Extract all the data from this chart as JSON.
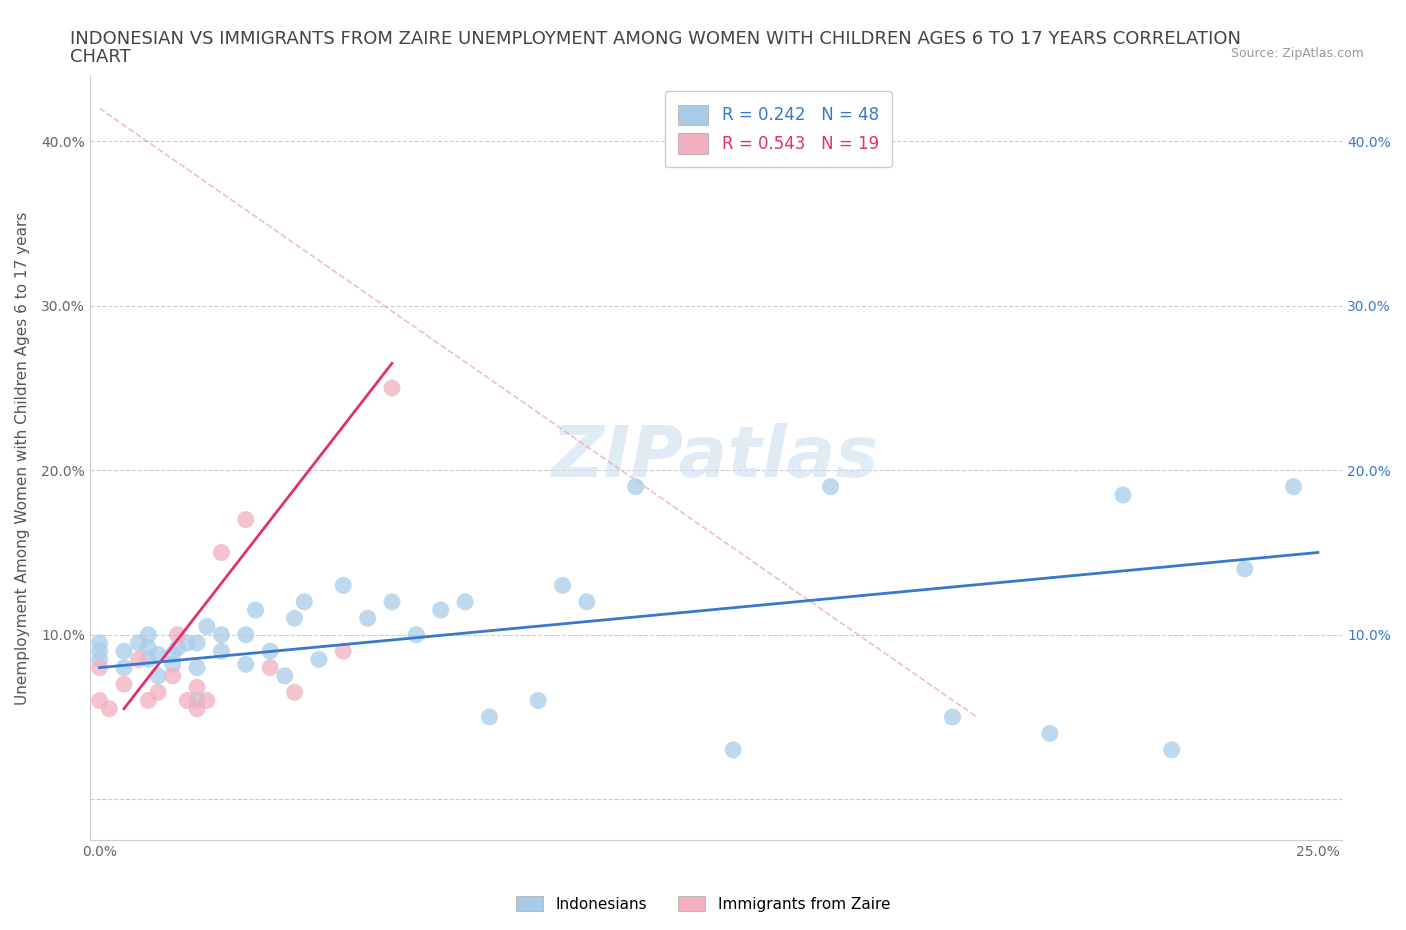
{
  "title_line1": "INDONESIAN VS IMMIGRANTS FROM ZAIRE UNEMPLOYMENT AMONG WOMEN WITH CHILDREN AGES 6 TO 17 YEARS CORRELATION",
  "title_line2": "CHART",
  "source_text": "Source: ZipAtlas.com",
  "ylabel": "Unemployment Among Women with Children Ages 6 to 17 years",
  "watermark": "ZIPatlas",
  "xlim": [
    -0.002,
    0.255
  ],
  "ylim": [
    -0.025,
    0.44
  ],
  "xticks": [
    0.0,
    0.05,
    0.1,
    0.15,
    0.2,
    0.25
  ],
  "xtick_labels": [
    "0.0%",
    "",
    "",
    "",
    "",
    "25.0%"
  ],
  "ytick_positions": [
    0.0,
    0.1,
    0.2,
    0.3,
    0.4
  ],
  "ytick_labels_left": [
    "",
    "10.0%",
    "20.0%",
    "30.0%",
    "40.0%"
  ],
  "right_ytick_positions": [
    0.1,
    0.2,
    0.3,
    0.4
  ],
  "right_ytick_labels": [
    "10.0%",
    "20.0%",
    "30.0%",
    "40.0%"
  ],
  "indonesian_color": "#a8cce8",
  "zaire_color": "#f2afc0",
  "indonesian_line_color": "#3a78c9",
  "zaire_line_color": "#e03070",
  "indonesian_R": 0.242,
  "indonesian_N": 48,
  "zaire_R": 0.543,
  "zaire_N": 19,
  "background_color": "#ffffff",
  "grid_color": "#cccccc",
  "indonesian_scatter_x": [
    0.0,
    0.0,
    0.0,
    0.005,
    0.005,
    0.008,
    0.01,
    0.01,
    0.01,
    0.012,
    0.012,
    0.015,
    0.015,
    0.016,
    0.018,
    0.02,
    0.02,
    0.02,
    0.022,
    0.025,
    0.025,
    0.03,
    0.03,
    0.032,
    0.035,
    0.038,
    0.04,
    0.042,
    0.045,
    0.05,
    0.055,
    0.06,
    0.065,
    0.07,
    0.075,
    0.08,
    0.09,
    0.095,
    0.1,
    0.11,
    0.13,
    0.15,
    0.175,
    0.195,
    0.21,
    0.22,
    0.235,
    0.245
  ],
  "indonesian_scatter_y": [
    0.085,
    0.09,
    0.095,
    0.08,
    0.09,
    0.095,
    0.085,
    0.092,
    0.1,
    0.075,
    0.088,
    0.082,
    0.088,
    0.092,
    0.095,
    0.06,
    0.08,
    0.095,
    0.105,
    0.09,
    0.1,
    0.082,
    0.1,
    0.115,
    0.09,
    0.075,
    0.11,
    0.12,
    0.085,
    0.13,
    0.11,
    0.12,
    0.1,
    0.115,
    0.12,
    0.05,
    0.06,
    0.13,
    0.12,
    0.19,
    0.03,
    0.19,
    0.05,
    0.04,
    0.185,
    0.03,
    0.14,
    0.19
  ],
  "zaire_scatter_x": [
    0.0,
    0.0,
    0.002,
    0.005,
    0.008,
    0.01,
    0.012,
    0.015,
    0.016,
    0.018,
    0.02,
    0.02,
    0.022,
    0.025,
    0.03,
    0.035,
    0.04,
    0.05,
    0.06
  ],
  "zaire_scatter_y": [
    0.06,
    0.08,
    0.055,
    0.07,
    0.085,
    0.06,
    0.065,
    0.075,
    0.1,
    0.06,
    0.068,
    0.055,
    0.06,
    0.15,
    0.17,
    0.08,
    0.065,
    0.09,
    0.25
  ],
  "indonesian_trend": [
    0.0,
    0.25,
    0.08,
    0.15
  ],
  "zaire_trend_solid": [
    0.005,
    0.06,
    0.055,
    0.265
  ],
  "zaire_trend_dashed": [
    0.0,
    0.18,
    0.42,
    0.05
  ],
  "title_fontsize": 13,
  "axis_label_fontsize": 11,
  "tick_fontsize": 10,
  "legend_fontsize": 12,
  "watermark_fontsize": 52
}
